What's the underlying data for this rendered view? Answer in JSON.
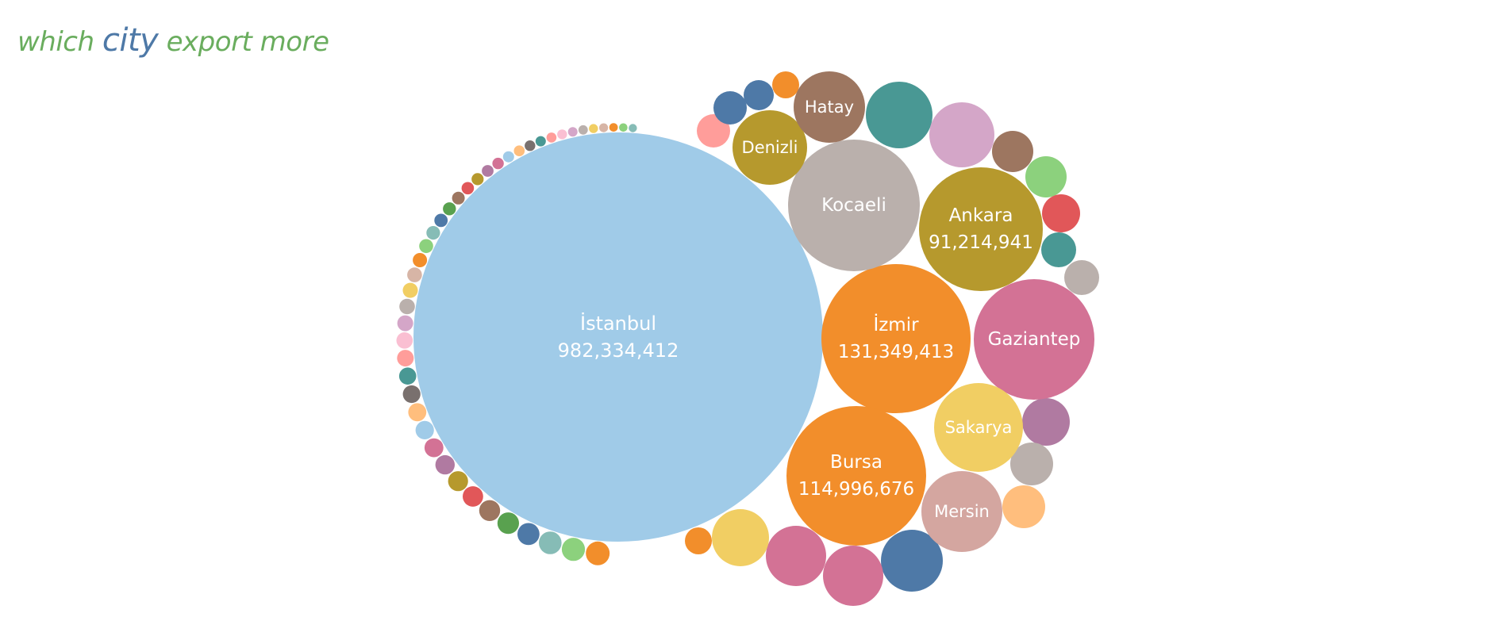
{
  "title": {
    "part1": "which",
    "part2": "city",
    "part3": "export more"
  },
  "chart_data": {
    "type": "packed-bubble",
    "title": "which city export more",
    "unlabeled_bubble_count": 110,
    "labeled_bubbles": [
      {
        "name": "İstanbul",
        "value": 982334412,
        "value_label": "982,334,412",
        "color": "#a0cbe8"
      },
      {
        "name": "İzmir",
        "value": 131349413,
        "value_label": "131,349,413",
        "color": "#f28e2b"
      },
      {
        "name": "Bursa",
        "value": 114996676,
        "value_label": "114,996,676",
        "color": "#f28e2b"
      },
      {
        "name": "Ankara",
        "value": 91214941,
        "value_label": "91,214,941",
        "color": "#b6992d"
      },
      {
        "name": "Kocaeli",
        "color": "#bab0ac"
      },
      {
        "name": "Gaziantep",
        "color": "#d37295"
      },
      {
        "name": "Sakarya",
        "color": "#f1ce63"
      },
      {
        "name": "Mersin",
        "color": "#d4a6a0"
      },
      {
        "name": "Denizli",
        "color": "#b6992d"
      },
      {
        "name": "Hatay",
        "color": "#9d7660"
      }
    ],
    "palette": [
      "#4e79a7",
      "#a0cbe8",
      "#f28e2b",
      "#ffbe7d",
      "#59a14f",
      "#8cd17d",
      "#b6992d",
      "#f1ce63",
      "#499894",
      "#86bcb6",
      "#e15759",
      "#ff9d9a",
      "#79706e",
      "#bab0ac",
      "#d37295",
      "#fabfd2",
      "#b07aa1",
      "#d4a6c8",
      "#9d7660",
      "#d7b5a6"
    ]
  }
}
